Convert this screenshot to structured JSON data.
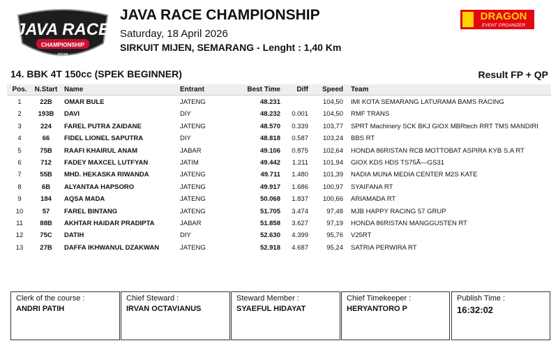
{
  "logo": {
    "line1": "JAVA RACE",
    "line2": "CHAMPIONSHIP",
    "line3": "2026"
  },
  "header": {
    "title": "JAVA RACE CHAMPIONSHIP",
    "date": "Saturday, 18 April 2026",
    "venue": "SIRKUIT MIJEN, SEMARANG - Lenght : 1,40 Km"
  },
  "sponsor": {
    "name": "DRAGON",
    "tagline": "EVENT ORGANIZER"
  },
  "category": "14. BBK 4T 150cc (SPEK BEGINNER)",
  "session": "Result FP + QP",
  "table": {
    "columns": [
      "Pos.",
      "N.Start",
      "Name",
      "Entrant",
      "Best Time",
      "Diff",
      "Speed",
      "Team"
    ],
    "rows": [
      [
        "1",
        "22B",
        "OMAR BULE",
        "JATENG",
        "48.231",
        null,
        "104,50",
        "IMI KOTA SEMARANG LATURAMA BAMS RACING"
      ],
      [
        "2",
        "193B",
        "DAVI",
        "DIY",
        "48.232",
        "0.001",
        "104,50",
        "RMF TRANS"
      ],
      [
        "3",
        "224",
        "FAREL PUTRA ZAIDANE",
        "JATENG",
        "48.570",
        "0.339",
        "103,77",
        "SPRT Machinery SCK BKJ GIOX MBRtech RRT TMS MANDIRI"
      ],
      [
        "4",
        "66",
        "FIDEL LIONEL SAPUTRA",
        "DIY",
        "48.818",
        "0.587",
        "103,24",
        "BBS RT"
      ],
      [
        "5",
        "75B",
        "RAAFI KHAIRUL ANAM",
        "JABAR",
        "49.106",
        "0.875",
        "102,64",
        "HONDA 86RISTAN RCB MOTTOBAT ASPIRA KYB S.A RT"
      ],
      [
        "6",
        "712",
        "FADEY MAXCEL LUTFYAN",
        "JATIM",
        "49.442",
        "1.211",
        "101,94",
        "GIOX KDS HDS TS75Ã—GS31"
      ],
      [
        "7",
        "55B",
        "MHD. HEKASKA RIWANDA",
        "JATENG",
        "49.711",
        "1.480",
        "101,39",
        "NADIA MUNA MEDIA CENTER M2S KATE"
      ],
      [
        "8",
        "6B",
        "ALYANTAA HAPSORO",
        "JATENG",
        "49.917",
        "1.686",
        "100,97",
        "SYAIFANA RT"
      ],
      [
        "9",
        "184",
        "AQSA MADA",
        "JATENG",
        "50.068",
        "1.837",
        "100,66",
        "ARIAMADA RT"
      ],
      [
        "10",
        "57",
        "FAREL BINTANG",
        "JATENG",
        "51.705",
        "3.474",
        "97,48",
        "MJB HAPPY RACING 57 GRUP"
      ],
      [
        "11",
        "88B",
        "AKHTAR HAIDAR PRADIPTA",
        "JABAR",
        "51.858",
        "3.627",
        "97,19",
        "HONDA 86RISTAN MANGGUSTEN RT"
      ],
      [
        "12",
        "75C",
        "DATIH",
        "DIY",
        "52.630",
        "4.399",
        "95,76",
        "V25RT"
      ],
      [
        "13",
        "27B",
        "DAFFA IKHWANUL DZAKWAN",
        "JATENG",
        "52.918",
        "4.687",
        "95,24",
        "SATRIA PERWIRA RT"
      ]
    ]
  },
  "officials": [
    {
      "role": "Clerk of the course :",
      "name": "ANDRI PATIH"
    },
    {
      "role": "Chief Steward :",
      "name": "IRVAN OCTAVIANUS"
    },
    {
      "role": "Steward Member :",
      "name": "SYAEFUL HIDAYAT"
    },
    {
      "role": "Chief Timekeeper :",
      "name": "HERYANTORO P"
    },
    {
      "role": "Publish Time :",
      "name": "16:32:02"
    }
  ]
}
